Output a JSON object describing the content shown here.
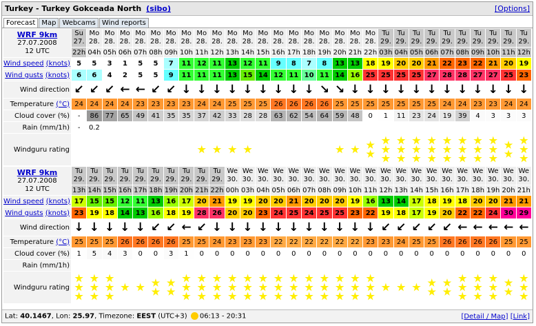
{
  "header": {
    "title": "Turkey - Turkey Gokceada North",
    "user": "(sibo)",
    "options": "[Options]"
  },
  "tabs": [
    "Forecast",
    "Map",
    "Webcams",
    "Wind reports"
  ],
  "labels": {
    "wind_speed": "Wind speed",
    "wind_gusts": "Wind gusts",
    "knots": "(knots)",
    "direction": "Wind direction",
    "temperature": "Temperature",
    "celsius": "(°C)",
    "cloud": "Cloud cover (%)",
    "rain": "Rain (mm/1h)",
    "rating": "Windguru rating"
  },
  "scales": {
    "wind": [
      [
        0,
        "#ffffff"
      ],
      [
        6,
        "#aaffff"
      ],
      [
        8,
        "#66ffff"
      ],
      [
        10,
        "#66ff99"
      ],
      [
        11,
        "#33ff33"
      ],
      [
        13,
        "#00cc00"
      ],
      [
        15,
        "#66ee00"
      ],
      [
        16,
        "#99ff00"
      ],
      [
        17,
        "#ccff00"
      ],
      [
        18,
        "#ffff00"
      ],
      [
        20,
        "#ffcc00"
      ],
      [
        21,
        "#ff9900"
      ],
      [
        22,
        "#ff6600"
      ],
      [
        24,
        "#ff3333"
      ],
      [
        26,
        "#ff3366"
      ],
      [
        29,
        "#ff0099"
      ]
    ],
    "temperature": [
      [
        0,
        "#ffaa44"
      ],
      [
        23,
        "#ff9933"
      ],
      [
        26,
        "#ff7722"
      ]
    ]
  },
  "tables": [
    {
      "model": "WRF 9km",
      "date": "27.07.2008",
      "run": "12 UTC",
      "days": [
        "Su",
        "Mo",
        "Mo",
        "Mo",
        "Mo",
        "Mo",
        "Mo",
        "Mo",
        "Mo",
        "Mo",
        "Mo",
        "Mo",
        "Mo",
        "Mo",
        "Mo",
        "Mo",
        "Mo",
        "Mo",
        "Mo",
        "Mo",
        "Tu",
        "Tu",
        "Tu",
        "Tu",
        "Tu",
        "Tu",
        "Tu",
        "Tu",
        "Tu",
        "Tu"
      ],
      "dates": [
        "27.",
        "28.",
        "28.",
        "28.",
        "28.",
        "28.",
        "28.",
        "28.",
        "28.",
        "28.",
        "28.",
        "28.",
        "28.",
        "28.",
        "28.",
        "28.",
        "28.",
        "28.",
        "28.",
        "28.",
        "29.",
        "29.",
        "29.",
        "29.",
        "29.",
        "29.",
        "29.",
        "29.",
        "29.",
        "29."
      ],
      "hours": [
        "22h",
        "04h",
        "05h",
        "06h",
        "07h",
        "08h",
        "09h",
        "10h",
        "11h",
        "12h",
        "13h",
        "14h",
        "15h",
        "16h",
        "17h",
        "18h",
        "19h",
        "20h",
        "21h",
        "22h",
        "03h",
        "04h",
        "05h",
        "06h",
        "07h",
        "08h",
        "09h",
        "10h",
        "11h",
        "12h"
      ],
      "wind_speed": [
        5,
        5,
        3,
        1,
        5,
        5,
        7,
        11,
        12,
        11,
        13,
        12,
        11,
        9,
        8,
        7,
        8,
        13,
        13,
        18,
        19,
        20,
        20,
        21,
        22,
        23,
        22,
        21,
        20,
        19
      ],
      "wind_gusts": [
        6,
        6,
        4,
        2,
        5,
        5,
        9,
        11,
        11,
        11,
        13,
        15,
        14,
        12,
        11,
        10,
        11,
        14,
        16,
        25,
        25,
        25,
        25,
        27,
        28,
        28,
        27,
        27,
        25,
        23
      ],
      "wind_direction": [
        "↙",
        "↙",
        "↙",
        "←",
        "←",
        "↙",
        "↙",
        "↓",
        "↓",
        "↓",
        "↓",
        "↓",
        "↓",
        "↓",
        "↓",
        "↓",
        "↘",
        "↘",
        "↓",
        "↓",
        "↓",
        "↓",
        "↓",
        "↓",
        "↓",
        "↓",
        "↓",
        "↓",
        "↓",
        "↓"
      ],
      "temperature": [
        24,
        24,
        24,
        24,
        23,
        23,
        23,
        23,
        24,
        24,
        25,
        25,
        25,
        26,
        26,
        26,
        26,
        25,
        25,
        25,
        25,
        25,
        25,
        25,
        24,
        24,
        23,
        23,
        24,
        24
      ],
      "cloud_cover": [
        "-",
        86,
        77,
        65,
        49,
        41,
        35,
        35,
        37,
        42,
        33,
        28,
        28,
        63,
        62,
        54,
        64,
        59,
        48,
        0,
        1,
        11,
        23,
        24,
        19,
        39,
        4,
        3,
        3,
        3
      ],
      "rain": [
        "-",
        0.2,
        null,
        null,
        null,
        null,
        null,
        null,
        null,
        null,
        null,
        null,
        null,
        null,
        null,
        null,
        null,
        null,
        null,
        null,
        null,
        null,
        null,
        null,
        null,
        null,
        null,
        null,
        null,
        null
      ],
      "rating": [
        0,
        0,
        0,
        0,
        0,
        0,
        0,
        0,
        1,
        1,
        1,
        1,
        0,
        0,
        0,
        0,
        0,
        1,
        1,
        2,
        3,
        3,
        3,
        3,
        3,
        3,
        3,
        3,
        2,
        3
      ]
    },
    {
      "model": "WRF 9km",
      "date": "27.07.2008",
      "run": "12 UTC",
      "days": [
        "Tu",
        "Tu",
        "Tu",
        "Tu",
        "Tu",
        "Tu",
        "Tu",
        "Tu",
        "Tu",
        "Tu",
        "We",
        "We",
        "We",
        "We",
        "We",
        "We",
        "We",
        "We",
        "We",
        "We",
        "We",
        "We",
        "We",
        "We",
        "We",
        "We",
        "We",
        "We",
        "We",
        "We"
      ],
      "dates": [
        "29.",
        "29.",
        "29.",
        "29.",
        "29.",
        "29.",
        "29.",
        "29.",
        "29.",
        "29.",
        "30.",
        "30.",
        "30.",
        "30.",
        "30.",
        "30.",
        "30.",
        "30.",
        "30.",
        "30.",
        "30.",
        "30.",
        "30.",
        "30.",
        "30.",
        "30.",
        "30.",
        "30.",
        "30.",
        "30."
      ],
      "hours": [
        "13h",
        "14h",
        "15h",
        "16h",
        "17h",
        "18h",
        "19h",
        "20h",
        "21h",
        "22h",
        "00h",
        "03h",
        "04h",
        "05h",
        "06h",
        "07h",
        "08h",
        "09h",
        "10h",
        "11h",
        "12h",
        "13h",
        "14h",
        "15h",
        "16h",
        "17h",
        "18h",
        "19h",
        "20h",
        "21h"
      ],
      "wind_speed": [
        17,
        15,
        15,
        12,
        11,
        13,
        16,
        17,
        20,
        21,
        19,
        19,
        20,
        20,
        21,
        20,
        20,
        20,
        19,
        16,
        13,
        14,
        17,
        18,
        19,
        18,
        20,
        20,
        21,
        21
      ],
      "wind_gusts": [
        23,
        19,
        18,
        14,
        13,
        16,
        18,
        19,
        28,
        26,
        20,
        20,
        23,
        24,
        25,
        24,
        25,
        25,
        23,
        22,
        19,
        18,
        17,
        19,
        20,
        22,
        22,
        24,
        30,
        29
      ],
      "wind_direction": [
        "↓",
        "↓",
        "↓",
        "↓",
        "↓",
        "↙",
        "↙",
        "←",
        "↙",
        "↓",
        "↓",
        "↓",
        "↓",
        "↓",
        "↓",
        "↓",
        "↓",
        "↓",
        "↓",
        "↓",
        "↙",
        "↙",
        "↙",
        "↙",
        "↙",
        "←",
        "←",
        "←",
        "←",
        "←"
      ],
      "temperature": [
        25,
        25,
        25,
        26,
        26,
        26,
        26,
        25,
        25,
        24,
        23,
        23,
        23,
        22,
        22,
        22,
        22,
        22,
        22,
        23,
        23,
        24,
        25,
        25,
        26,
        26,
        26,
        26,
        25,
        25
      ],
      "cloud_cover": [
        1,
        5,
        4,
        3,
        0,
        0,
        3,
        1,
        0,
        0,
        0,
        0,
        0,
        0,
        0,
        0,
        0,
        0,
        0,
        0,
        0,
        0,
        0,
        0,
        0,
        0,
        0,
        0,
        0,
        0
      ],
      "rain": [
        null,
        null,
        null,
        null,
        null,
        null,
        null,
        null,
        null,
        null,
        null,
        null,
        null,
        null,
        null,
        null,
        null,
        null,
        null,
        null,
        null,
        null,
        null,
        null,
        null,
        null,
        null,
        null,
        null,
        null
      ],
      "rating": [
        3,
        3,
        3,
        1,
        1,
        2,
        2,
        3,
        3,
        3,
        3,
        3,
        3,
        3,
        3,
        3,
        3,
        3,
        3,
        3,
        1,
        1,
        1,
        2,
        2,
        3,
        3,
        3,
        2,
        3
      ]
    }
  ],
  "footer": {
    "lat_label": "Lat:",
    "lat": "40.1467",
    "lon_label": ", Lon:",
    "lon": "25.97",
    "tz_label": ", Timezone:",
    "tz": "EEST",
    "utc": "(UTC+3)",
    "sun": "06:13 - 20:31",
    "detail": "[Detail / Map]",
    "link": "[Link]"
  }
}
